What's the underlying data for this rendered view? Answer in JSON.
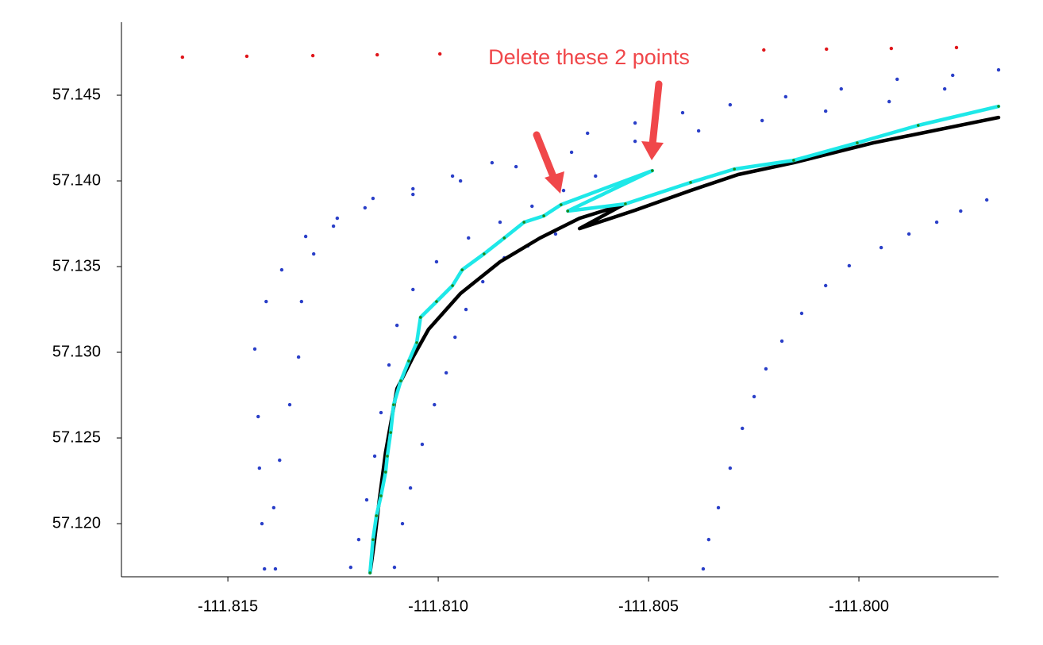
{
  "chart_data": {
    "type": "scatter",
    "annotation": "Delete these 2 points",
    "xlim": [
      -111.81753,
      -111.79668
    ],
    "ylim": [
      57.1169,
      57.14926
    ],
    "xticks": [
      -111.815,
      {
        "value": -111.81,
        "label": "-111.810"
      },
      -111.805,
      {
        "value": -111.8,
        "label": "-111.800"
      }
    ],
    "yticks": [
      {
        "value": 57.12,
        "label": "57.120"
      },
      57.125,
      {
        "value": 57.13,
        "label": "57.130"
      },
      57.135,
      {
        "value": 57.14,
        "label": "57.140"
      },
      57.145
    ],
    "series": [
      {
        "mode": "markers",
        "color": "#2a3fc8",
        "x": [
          -111.81413,
          -111.81419,
          -111.81425,
          -111.81428,
          -111.81436,
          -111.81409,
          -111.81372,
          -111.81315,
          -111.8124,
          -111.81155,
          -111.8106,
          -111.80966,
          -111.80872,
          -111.80758,
          -111.80645,
          -111.80532,
          -111.80419,
          -111.80306,
          -111.80174,
          -111.80042,
          -111.79909,
          -111.79777,
          -111.79668,
          -111.81387,
          -111.81391,
          -111.81377,
          -111.81353,
          -111.81332,
          -111.81325,
          -111.81296,
          -111.81249,
          -111.81174,
          -111.8106,
          -111.80947,
          -111.80815,
          -111.80683,
          -111.80532,
          -111.80381,
          -111.8023,
          -111.80079,
          -111.79928,
          -111.79796,
          -111.81208,
          -111.81189,
          -111.8117,
          -111.81151,
          -111.81136,
          -111.81117,
          -111.81098,
          -111.8106,
          -111.81004,
          -111.80928,
          -111.80853,
          -111.80777,
          -111.80702,
          -111.80626,
          -111.81104,
          -111.81085,
          -111.81066,
          -111.81038,
          -111.81009,
          -111.80981,
          -111.8096,
          -111.80934,
          -111.80894,
          -111.80843,
          -111.80787,
          -111.80721,
          -111.8037,
          -111.80357,
          -111.80334,
          -111.80306,
          -111.80277,
          -111.80249,
          -111.80221,
          -111.80183,
          -111.80136,
          -111.80079,
          -111.80023,
          -111.79947,
          -111.79881,
          -111.79815,
          -111.79758,
          -111.79696
        ],
        "y": [
          57.11736,
          57.12,
          57.12324,
          57.12625,
          57.13019,
          57.13296,
          57.13481,
          57.13676,
          57.13782,
          57.13898,
          57.13954,
          57.14028,
          57.14106,
          57.14199,
          57.14278,
          57.14338,
          57.14398,
          57.14444,
          57.14491,
          57.14537,
          57.14593,
          57.14616,
          57.14648,
          57.11736,
          57.12093,
          57.1237,
          57.12694,
          57.12972,
          57.13296,
          57.13574,
          57.13736,
          57.13843,
          57.13921,
          57.14,
          57.14083,
          57.14167,
          57.14231,
          57.14292,
          57.14352,
          57.14407,
          57.14463,
          57.14537,
          57.11745,
          57.11907,
          57.12139,
          57.12394,
          57.12648,
          57.12926,
          57.13157,
          57.13366,
          57.13528,
          57.13667,
          57.13759,
          57.13852,
          57.13944,
          57.14028,
          57.11745,
          57.12,
          57.12208,
          57.12463,
          57.12694,
          57.1288,
          57.13088,
          57.1325,
          57.13412,
          57.13551,
          57.1362,
          57.1369,
          57.11736,
          57.11907,
          57.12093,
          57.12324,
          57.12556,
          57.12741,
          57.12903,
          57.13065,
          57.13227,
          57.13389,
          57.13505,
          57.13611,
          57.1369,
          57.13759,
          57.13824,
          57.13889
        ]
      },
      {
        "mode": "markers",
        "color": "#e0161b",
        "x": [
          -111.81608,
          -111.81455,
          -111.81298,
          -111.81145,
          -111.80996,
          -111.80226,
          -111.80077,
          -111.79923,
          -111.79768
        ],
        "y": [
          57.14722,
          57.14727,
          57.14731,
          57.14736,
          57.14741,
          57.14764,
          57.14769,
          57.14773,
          57.14778
        ]
      },
      {
        "mode": "lines",
        "color": "#000000",
        "x": [
          -111.81162,
          -111.81151,
          -111.8114,
          -111.81125,
          -111.81098,
          -111.8106,
          -111.81023,
          -111.80947,
          -111.80853,
          -111.80758,
          -111.80664,
          -111.8056,
          -111.80664,
          -111.80532,
          -111.804,
          -111.80287,
          -111.80155,
          -111.79966,
          -111.79668
        ],
        "y": [
          57.11713,
          57.11907,
          57.12139,
          57.12417,
          57.12787,
          57.12972,
          57.13134,
          57.13343,
          57.13528,
          57.13667,
          57.13782,
          57.13861,
          57.13722,
          57.13829,
          57.13944,
          57.14037,
          57.14106,
          57.14222,
          57.1437
        ]
      },
      {
        "mode": "lines+markers",
        "color": "#1ee8e8",
        "marker_color": "#1a8a1a",
        "x": [
          -111.81162,
          -111.81155,
          -111.81147,
          -111.81136,
          -111.81125,
          -111.81121,
          -111.81113,
          -111.81106,
          -111.81089,
          -111.8107,
          -111.81051,
          -111.81042,
          -111.81004,
          -111.80966,
          -111.80943,
          -111.80891,
          -111.80843,
          -111.80796,
          -111.80749,
          -111.80708,
          -111.80491,
          -111.80692,
          -111.80555,
          -111.804,
          -111.80296,
          -111.80155,
          -111.80004,
          -111.79859,
          -111.79668
        ],
        "y": [
          57.11713,
          57.11907,
          57.12046,
          57.12162,
          57.12301,
          57.12394,
          57.12532,
          57.12694,
          57.12833,
          57.12949,
          57.13056,
          57.13204,
          57.13296,
          57.13389,
          57.13481,
          57.13574,
          57.13667,
          57.13759,
          57.13796,
          57.13861,
          57.1406,
          57.13824,
          57.13866,
          57.13991,
          57.14069,
          57.1412,
          57.14222,
          57.14324,
          57.14435
        ]
      }
    ]
  }
}
